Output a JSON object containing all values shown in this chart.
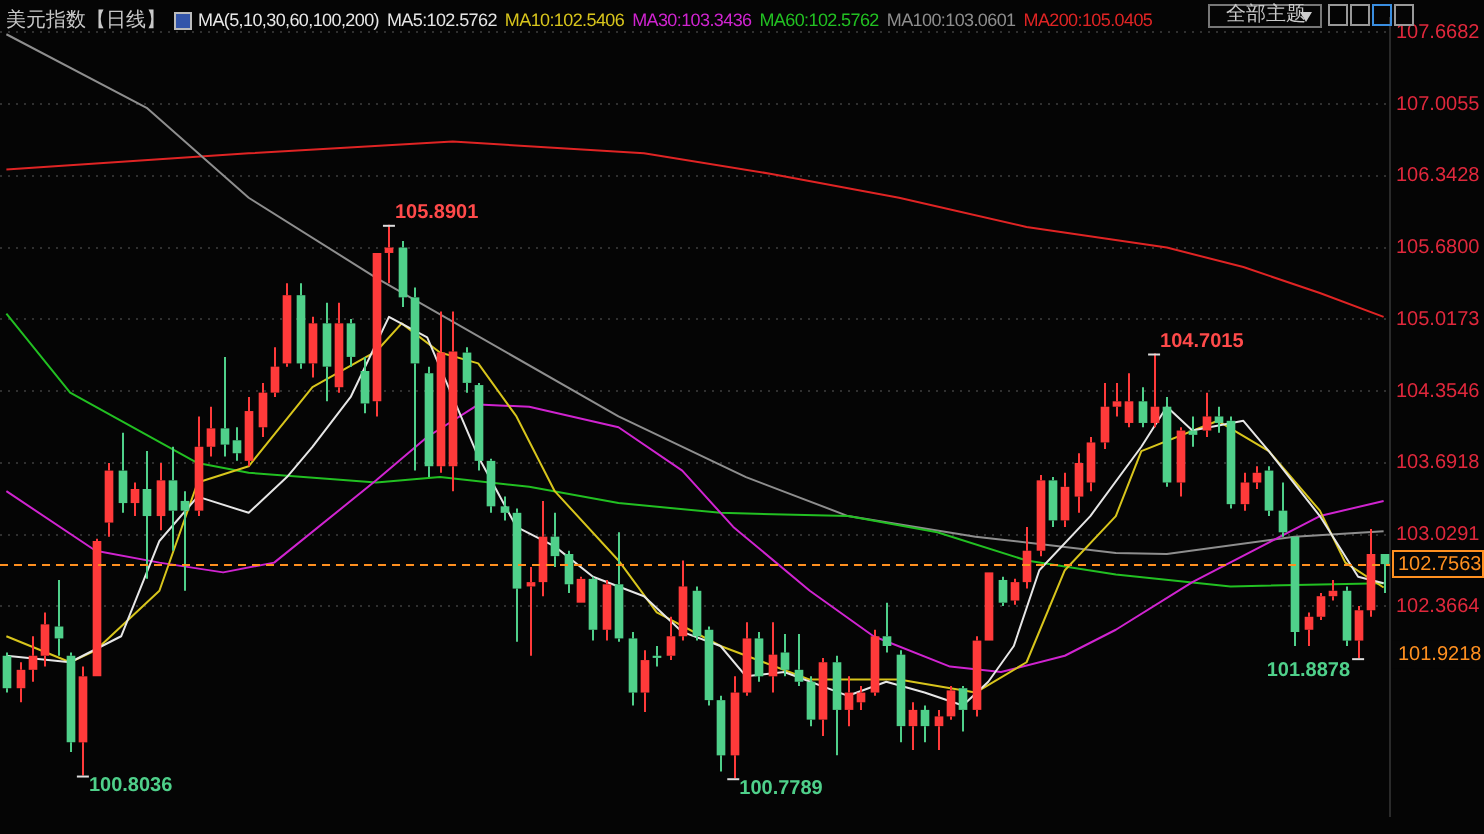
{
  "chart_data": {
    "type": "candlestick",
    "title": "美元指数【日线】",
    "subtitle": "MA(5,10,30,60,100,200)",
    "categories": [
      null,
      null,
      null,
      null,
      null,
      null,
      null,
      null,
      null,
      null,
      null,
      null,
      null,
      null,
      null,
      null,
      null,
      null,
      null,
      null,
      null,
      null,
      null,
      null,
      null,
      null,
      null,
      null,
      null,
      null,
      null,
      null,
      null,
      null,
      null,
      null,
      null,
      null,
      null,
      null,
      null,
      null,
      null,
      null,
      null,
      null,
      null,
      null,
      null,
      null,
      null,
      null,
      null,
      null,
      null,
      null,
      null,
      null,
      null,
      null,
      null,
      null,
      null,
      null,
      null,
      null,
      null,
      null,
      null,
      null,
      null,
      null,
      null,
      null,
      null,
      null,
      null,
      null,
      null,
      null,
      null,
      null,
      null,
      null,
      null,
      null,
      null,
      null,
      null,
      null,
      null,
      null,
      null,
      null,
      null,
      null,
      null,
      null,
      null,
      null,
      null,
      null,
      null,
      null,
      null,
      null,
      null,
      null,
      null
    ],
    "ohlc": [
      [
        101.91,
        101.94,
        101.57,
        101.61
      ],
      [
        101.61,
        101.85,
        101.48,
        101.78
      ],
      [
        101.78,
        102.09,
        101.67,
        101.91
      ],
      [
        101.91,
        102.31,
        101.81,
        102.2
      ],
      [
        102.18,
        102.61,
        101.91,
        102.07
      ],
      [
        101.91,
        101.94,
        101.02,
        101.11
      ],
      [
        101.11,
        101.81,
        100.8036,
        101.72
      ],
      [
        101.72,
        102.99,
        101.72,
        102.97
      ],
      [
        103.14,
        103.69,
        103.01,
        103.62
      ],
      [
        103.62,
        103.97,
        103.23,
        103.32
      ],
      [
        103.32,
        103.51,
        103.2,
        103.45
      ],
      [
        103.45,
        103.8,
        102.62,
        103.2
      ],
      [
        103.2,
        103.69,
        103.07,
        103.53
      ],
      [
        103.53,
        103.84,
        102.88,
        103.25
      ],
      [
        103.34,
        103.43,
        102.51,
        103.25
      ],
      [
        103.25,
        104.12,
        103.2,
        103.84
      ],
      [
        103.84,
        104.21,
        103.75,
        104.01
      ],
      [
        104.01,
        104.67,
        103.75,
        103.86
      ],
      [
        103.9,
        104.02,
        103.71,
        103.78
      ],
      [
        103.71,
        104.3,
        103.66,
        104.17
      ],
      [
        104.02,
        104.43,
        103.93,
        104.34
      ],
      [
        104.34,
        104.76,
        104.3,
        104.58
      ],
      [
        104.61,
        105.35,
        104.58,
        105.24
      ],
      [
        105.24,
        105.35,
        104.56,
        104.61
      ],
      [
        104.61,
        105.04,
        104.48,
        104.98
      ],
      [
        104.98,
        105.17,
        104.26,
        104.58
      ],
      [
        104.39,
        105.17,
        104.34,
        104.98
      ],
      [
        104.98,
        105.02,
        104.58,
        104.67
      ],
      [
        104.54,
        104.67,
        104.15,
        104.24
      ],
      [
        104.26,
        105.63,
        104.12,
        105.63
      ],
      [
        105.63,
        105.8901,
        105.35,
        105.68
      ],
      [
        105.68,
        105.74,
        105.13,
        105.22
      ],
      [
        105.22,
        105.31,
        103.62,
        104.61
      ],
      [
        104.52,
        104.58,
        103.56,
        103.66
      ],
      [
        103.66,
        105.09,
        103.6,
        104.71
      ],
      [
        103.66,
        105.09,
        103.43,
        104.72
      ],
      [
        104.71,
        104.76,
        104.34,
        104.43
      ],
      [
        104.41,
        104.43,
        103.62,
        103.71
      ],
      [
        103.71,
        103.73,
        103.23,
        103.29
      ],
      [
        103.29,
        103.38,
        103.16,
        103.23
      ],
      [
        103.23,
        103.27,
        102.04,
        102.53
      ],
      [
        102.55,
        102.73,
        101.91,
        102.59
      ],
      [
        102.59,
        103.34,
        102.46,
        103.01
      ],
      [
        103.01,
        103.23,
        102.73,
        102.83
      ],
      [
        102.85,
        102.88,
        102.49,
        102.57
      ],
      [
        102.4,
        102.64,
        102.4,
        102.62
      ],
      [
        102.62,
        102.64,
        102.05,
        102.15
      ],
      [
        102.15,
        102.61,
        102.05,
        102.57
      ],
      [
        102.57,
        103.05,
        102.04,
        102.07
      ],
      [
        102.07,
        102.13,
        101.45,
        101.57
      ],
      [
        101.57,
        101.96,
        101.39,
        101.87
      ],
      [
        101.91,
        102.0,
        101.81,
        101.89
      ],
      [
        101.91,
        102.27,
        101.87,
        102.09
      ],
      [
        102.09,
        102.79,
        102.05,
        102.55
      ],
      [
        102.51,
        102.55,
        102.05,
        102.09
      ],
      [
        102.15,
        102.18,
        101.45,
        101.5
      ],
      [
        101.5,
        101.54,
        100.84,
        100.99
      ],
      [
        100.99,
        101.72,
        100.7789,
        101.57
      ],
      [
        101.57,
        102.22,
        101.54,
        102.07
      ],
      [
        102.07,
        102.13,
        101.67,
        101.72
      ],
      [
        101.72,
        102.22,
        101.57,
        101.92
      ],
      [
        101.94,
        102.11,
        101.72,
        101.78
      ],
      [
        101.78,
        102.11,
        101.63,
        101.67
      ],
      [
        101.67,
        101.72,
        101.26,
        101.32
      ],
      [
        101.32,
        101.89,
        101.17,
        101.85
      ],
      [
        101.85,
        101.91,
        100.99,
        101.41
      ],
      [
        101.41,
        101.72,
        101.26,
        101.57
      ],
      [
        101.48,
        101.63,
        101.41,
        101.57
      ],
      [
        101.57,
        102.15,
        101.54,
        102.09
      ],
      [
        102.09,
        102.4,
        101.94,
        102.0
      ],
      [
        101.92,
        101.96,
        101.11,
        101.26
      ],
      [
        101.26,
        101.48,
        101.04,
        101.41
      ],
      [
        101.41,
        101.45,
        101.11,
        101.26
      ],
      [
        101.26,
        101.41,
        101.04,
        101.35
      ],
      [
        101.35,
        101.63,
        101.32,
        101.59
      ],
      [
        101.61,
        101.63,
        101.21,
        101.41
      ],
      [
        101.41,
        102.09,
        101.35,
        102.05
      ],
      [
        102.05,
        102.68,
        102.05,
        102.68
      ],
      [
        102.61,
        102.64,
        102.37,
        102.4
      ],
      [
        102.42,
        102.62,
        102.38,
        102.59
      ],
      [
        102.59,
        103.1,
        102.53,
        102.88
      ],
      [
        102.88,
        103.58,
        102.83,
        103.53
      ],
      [
        103.53,
        103.56,
        103.1,
        103.16
      ],
      [
        103.16,
        103.6,
        103.1,
        103.47
      ],
      [
        103.38,
        103.78,
        103.23,
        103.69
      ],
      [
        103.51,
        103.93,
        103.43,
        103.88
      ],
      [
        103.88,
        104.43,
        103.82,
        104.21
      ],
      [
        104.21,
        104.43,
        104.12,
        104.26
      ],
      [
        104.06,
        104.52,
        104.02,
        104.26
      ],
      [
        104.26,
        104.39,
        104.02,
        104.06
      ],
      [
        104.06,
        104.7015,
        104.02,
        104.21
      ],
      [
        104.21,
        104.3,
        103.47,
        103.51
      ],
      [
        103.51,
        104.02,
        103.38,
        103.99
      ],
      [
        103.99,
        104.12,
        103.84,
        103.95
      ],
      [
        103.99,
        104.34,
        103.93,
        104.12
      ],
      [
        104.12,
        104.21,
        103.97,
        104.06
      ],
      [
        104.08,
        104.12,
        103.27,
        103.31
      ],
      [
        103.31,
        103.6,
        103.25,
        103.51
      ],
      [
        103.51,
        103.66,
        103.45,
        103.6
      ],
      [
        103.62,
        103.66,
        103.2,
        103.25
      ],
      [
        103.25,
        103.51,
        103.01,
        103.05
      ],
      [
        103.01,
        103.01,
        102.0,
        102.13
      ],
      [
        102.15,
        102.31,
        102.0,
        102.27
      ],
      [
        102.27,
        102.49,
        102.24,
        102.46
      ],
      [
        102.46,
        102.61,
        102.42,
        102.51
      ],
      [
        102.51,
        102.55,
        102.0,
        102.05
      ],
      [
        102.05,
        102.37,
        101.8878,
        102.33
      ],
      [
        102.33,
        103.08,
        102.27,
        102.85
      ],
      [
        102.85,
        102.85,
        102.49,
        102.7563
      ]
    ],
    "colors": [
      "#4fd08a",
      "#ff3a3a",
      "#ff3a3a",
      "#ff3a3a",
      "#4fd08a",
      "#4fd08a",
      "#ff3a3a",
      "#ff3a3a",
      "#ff3a3a",
      "#4fd08a",
      "#ff3a3a",
      "#4fd08a",
      "#ff3a3a",
      "#4fd08a",
      "#4fd08a",
      "#ff3a3a",
      "#ff3a3a",
      "#4fd08a",
      "#4fd08a",
      "#ff3a3a",
      "#ff3a3a",
      "#ff3a3a",
      "#ff3a3a",
      "#4fd08a",
      "#ff3a3a",
      "#4fd08a",
      "#ff3a3a",
      "#4fd08a",
      "#4fd08a",
      "#ff3a3a",
      "#ff3a3a",
      "#4fd08a",
      "#4fd08a",
      "#4fd08a",
      "#ff3a3a",
      "#ff3a3a",
      "#4fd08a",
      "#4fd08a",
      "#4fd08a",
      "#4fd08a",
      "#4fd08a",
      "#ff3a3a",
      "#ff3a3a",
      "#4fd08a",
      "#4fd08a",
      "#ff3a3a",
      "#4fd08a",
      "#ff3a3a",
      "#4fd08a",
      "#4fd08a",
      "#ff3a3a",
      "#4fd08a",
      "#ff3a3a",
      "#ff3a3a",
      "#4fd08a",
      "#4fd08a",
      "#4fd08a",
      "#ff3a3a",
      "#ff3a3a",
      "#4fd08a",
      "#ff3a3a",
      "#4fd08a",
      "#4fd08a",
      "#4fd08a",
      "#ff3a3a",
      "#4fd08a",
      "#ff3a3a",
      "#ff3a3a",
      "#ff3a3a",
      "#4fd08a",
      "#4fd08a",
      "#ff3a3a",
      "#4fd08a",
      "#ff3a3a",
      "#ff3a3a",
      "#4fd08a",
      "#ff3a3a",
      "#ff3a3a",
      "#4fd08a",
      "#ff3a3a",
      "#ff3a3a",
      "#ff3a3a",
      "#4fd08a",
      "#ff3a3a",
      "#ff3a3a",
      "#ff3a3a",
      "#ff3a3a",
      "#ff3a3a",
      "#ff3a3a",
      "#4fd08a",
      "#ff3a3a",
      "#4fd08a",
      "#ff3a3a",
      "#4fd08a",
      "#ff3a3a",
      "#4fd08a",
      "#4fd08a",
      "#ff3a3a",
      "#ff3a3a",
      "#4fd08a",
      "#4fd08a",
      "#4fd08a",
      "#ff3a3a",
      "#ff3a3a",
      "#ff3a3a",
      "#4fd08a",
      "#ff3a3a",
      "#ff3a3a",
      "#4fd08a"
    ],
    "series": [
      {
        "type": "line",
        "name": "MA5:102.5762",
        "color": "#e6e6e6",
        "values": [
          101.91,
          null,
          null,
          null,
          null,
          101.85,
          null,
          null,
          null,
          102.09,
          null,
          null,
          102.97,
          null,
          null,
          103.38,
          null,
          null,
          null,
          103.23,
          null,
          null,
          103.56,
          null,
          103.84,
          null,
          null,
          104.3,
          null,
          null,
          105.04,
          null,
          null,
          104.85,
          null,
          null,
          null,
          103.75,
          null,
          null,
          103.1,
          null,
          null,
          102.92,
          null,
          null,
          102.64,
          null,
          null,
          null,
          102.46,
          null,
          null,
          102.13,
          null,
          null,
          102.0,
          null,
          101.72,
          null,
          null,
          101.76,
          null,
          null,
          null,
          null,
          101.54,
          null,
          null,
          101.67,
          null,
          null,
          101.57,
          null,
          null,
          101.45,
          null,
          101.67,
          null,
          102.0,
          null,
          102.7,
          null,
          null,
          null,
          103.2,
          null,
          null,
          null,
          103.84,
          null,
          104.21,
          null,
          103.99,
          null,
          null,
          null,
          104.08,
          null,
          103.8,
          null,
          null,
          null,
          103.2,
          null,
          null,
          102.64,
          null,
          102.58
        ]
      },
      {
        "type": "line",
        "name": "MA10:102.5406",
        "color": "#d8c51c",
        "values": [
          102.09,
          null,
          null,
          null,
          null,
          101.85,
          null,
          101.96,
          null,
          null,
          null,
          null,
          102.51,
          null,
          null,
          103.51,
          null,
          null,
          null,
          103.66,
          null,
          null,
          null,
          null,
          104.39,
          null,
          null,
          null,
          null,
          104.72,
          null,
          104.98,
          null,
          null,
          104.71,
          null,
          null,
          104.61,
          null,
          null,
          104.12,
          null,
          null,
          103.43,
          null,
          null,
          null,
          null,
          102.79,
          null,
          null,
          102.31,
          null,
          null,
          null,
          null,
          102.0,
          null,
          null,
          null,
          null,
          null,
          null,
          101.69,
          null,
          null,
          null,
          null,
          null,
          null,
          101.69,
          null,
          null,
          null,
          null,
          null,
          101.57,
          null,
          null,
          null,
          101.85,
          null,
          null,
          102.7,
          null,
          null,
          null,
          103.2,
          null,
          103.8,
          null,
          null,
          null,
          null,
          null,
          104.08,
          null,
          null,
          null,
          103.8,
          null,
          null,
          null,
          103.25,
          null,
          102.77,
          null,
          null,
          102.54
        ]
      },
      {
        "type": "line",
        "name": "MA30:103.3436",
        "color": "#d024d0",
        "values": [
          103.43,
          null,
          null,
          null,
          null,
          null,
          null,
          102.88,
          null,
          null,
          null,
          null,
          102.77,
          null,
          null,
          null,
          null,
          102.68,
          null,
          null,
          null,
          102.77,
          null,
          null,
          null,
          null,
          null,
          null,
          null,
          103.53,
          null,
          null,
          null,
          103.93,
          null,
          null,
          null,
          104.23,
          null,
          null,
          null,
          104.21,
          null,
          null,
          null,
          null,
          null,
          null,
          104.02,
          null,
          null,
          null,
          null,
          103.62,
          null,
          null,
          null,
          103.1,
          null,
          null,
          null,
          null,
          null,
          102.51,
          null,
          null,
          null,
          null,
          102.09,
          null,
          null,
          null,
          null,
          null,
          101.81,
          null,
          null,
          null,
          101.76,
          null,
          null,
          null,
          null,
          101.91,
          null,
          null,
          null,
          102.15,
          null,
          null,
          null,
          null,
          null,
          102.59,
          null,
          null,
          null,
          null,
          null,
          null,
          null,
          null,
          null,
          103.2,
          null,
          null,
          null,
          null,
          103.34
        ]
      },
      {
        "type": "line",
        "name": "MA60:102.5762",
        "color": "#22c022",
        "values": [
          105.07,
          null,
          null,
          null,
          null,
          104.34,
          null,
          null,
          null,
          null,
          null,
          null,
          null,
          null,
          null,
          103.69,
          null,
          null,
          null,
          103.6,
          null,
          null,
          null,
          null,
          null,
          null,
          null,
          null,
          null,
          103.51,
          null,
          null,
          null,
          null,
          103.56,
          null,
          null,
          null,
          null,
          null,
          null,
          103.47,
          null,
          null,
          null,
          null,
          null,
          null,
          103.32,
          null,
          null,
          null,
          null,
          null,
          null,
          null,
          103.23,
          null,
          null,
          null,
          null,
          null,
          null,
          null,
          null,
          null,
          103.2,
          null,
          null,
          null,
          null,
          null,
          null,
          103.05,
          null,
          null,
          null,
          null,
          null,
          null,
          102.79,
          null,
          null,
          null,
          null,
          null,
          null,
          102.66,
          null,
          null,
          null,
          null,
          null,
          null,
          null,
          null,
          102.55,
          null,
          null,
          null,
          null,
          null,
          null,
          null,
          null,
          null,
          null,
          null,
          102.58
        ]
      },
      {
        "type": "line",
        "name": "MA100:103.0601",
        "color": "#8e8e8e",
        "values": [
          107.65,
          null,
          null,
          null,
          null,
          null,
          null,
          null,
          null,
          null,
          null,
          106.97,
          null,
          null,
          null,
          null,
          null,
          null,
          null,
          106.14,
          null,
          null,
          null,
          null,
          null,
          null,
          null,
          null,
          null,
          105.4,
          null,
          null,
          null,
          null,
          null,
          null,
          null,
          null,
          null,
          null,
          null,
          null,
          null,
          null,
          null,
          null,
          null,
          null,
          104.12,
          null,
          null,
          null,
          null,
          null,
          null,
          null,
          null,
          null,
          103.56,
          null,
          null,
          null,
          null,
          null,
          null,
          null,
          103.2,
          null,
          null,
          null,
          null,
          null,
          null,
          null,
          null,
          null,
          103.01,
          null,
          null,
          null,
          null,
          null,
          null,
          null,
          null,
          null,
          null,
          102.86,
          null,
          null,
          null,
          102.85,
          null,
          null,
          null,
          null,
          null,
          null,
          null,
          null,
          null,
          103.01,
          null,
          null,
          null,
          null,
          null,
          null,
          103.06
        ]
      },
      {
        "type": "line",
        "name": "MA200:105.0405",
        "color": "#e02424",
        "values": [
          106.4,
          null,
          null,
          null,
          null,
          null,
          null,
          null,
          null,
          null,
          null,
          null,
          null,
          null,
          null,
          null,
          null,
          null,
          null,
          106.55,
          null,
          null,
          null,
          null,
          null,
          null,
          null,
          null,
          null,
          null,
          null,
          null,
          null,
          null,
          null,
          106.66,
          null,
          null,
          null,
          null,
          null,
          null,
          null,
          null,
          null,
          null,
          null,
          null,
          null,
          null,
          106.55,
          null,
          null,
          null,
          null,
          null,
          null,
          null,
          null,
          null,
          106.36,
          null,
          null,
          null,
          null,
          null,
          null,
          null,
          null,
          null,
          106.14,
          null,
          null,
          null,
          null,
          null,
          null,
          null,
          null,
          null,
          105.87,
          null,
          null,
          null,
          null,
          null,
          null,
          null,
          null,
          null,
          null,
          105.68,
          null,
          null,
          null,
          null,
          null,
          105.5,
          null,
          null,
          null,
          null,
          null,
          105.26,
          null,
          null,
          null,
          null,
          105.04
        ]
      }
    ],
    "ylim": [
      100.43,
      107.8
    ],
    "yticks": [
      {
        "value": 107.6682,
        "label": "107.6682"
      },
      {
        "value": 107.0055,
        "label": "107.0055"
      },
      {
        "value": 106.3428,
        "label": "106.3428"
      },
      {
        "value": 105.68,
        "label": "105.6800"
      },
      {
        "value": 105.0173,
        "label": "105.0173"
      },
      {
        "value": 104.3546,
        "label": "104.3546"
      },
      {
        "value": 103.6918,
        "label": "103.6918"
      },
      {
        "value": 103.0291,
        "label": "103.0291"
      },
      {
        "value": 102.3664,
        "label": "102.3664"
      }
    ],
    "grid": "y",
    "tick_labels": "y",
    "legend": "top",
    "ref_lines": [
      {
        "axis": "y",
        "value": 102.7563,
        "label": "102.7563",
        "color": "#ff9020",
        "line_style": "dashed"
      }
    ],
    "annotations": [
      "全部主题",
      "105.8901",
      "100.8036",
      "100.7789",
      "104.7015",
      "101.8878",
      "101.9218"
    ]
  }
}
